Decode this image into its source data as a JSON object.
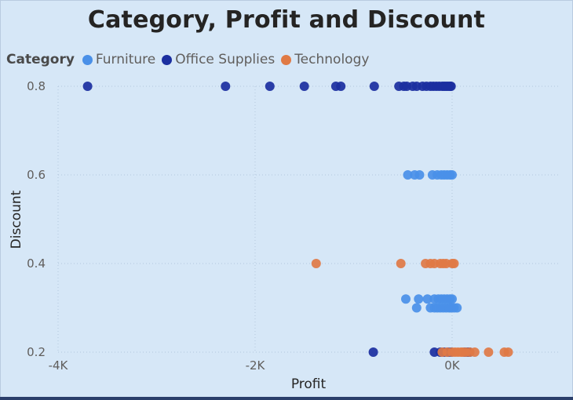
{
  "chart_data": {
    "type": "scatter",
    "title": "Category, Profit and Discount",
    "xlabel": "Profit",
    "ylabel": "Discount",
    "xlim": [
      -4000,
      1100
    ],
    "ylim": [
      0.2,
      0.8
    ],
    "x_ticks": [
      -4000,
      -2000,
      0
    ],
    "x_tick_labels": [
      "-4K",
      "-2K",
      "0K"
    ],
    "y_ticks": [
      0.2,
      0.4,
      0.6,
      0.8
    ],
    "y_tick_labels": [
      "0.2",
      "0.4",
      "0.6",
      "0.8"
    ],
    "grid": true,
    "legend": {
      "title": "Category",
      "placement": "top-left"
    },
    "series": [
      {
        "name": "Furniture",
        "color": "#4a90e8",
        "points": [
          [
            -450,
            0.6
          ],
          [
            -380,
            0.6
          ],
          [
            -330,
            0.6
          ],
          [
            -200,
            0.6
          ],
          [
            -150,
            0.6
          ],
          [
            -110,
            0.6
          ],
          [
            -80,
            0.6
          ],
          [
            -50,
            0.6
          ],
          [
            -20,
            0.6
          ],
          [
            0,
            0.6
          ],
          [
            -470,
            0.32
          ],
          [
            -340,
            0.32
          ],
          [
            -250,
            0.32
          ],
          [
            -180,
            0.32
          ],
          [
            -140,
            0.32
          ],
          [
            -110,
            0.32
          ],
          [
            -80,
            0.32
          ],
          [
            -50,
            0.32
          ],
          [
            -20,
            0.32
          ],
          [
            0,
            0.32
          ],
          [
            -360,
            0.3
          ],
          [
            -220,
            0.3
          ],
          [
            -180,
            0.3
          ],
          [
            -150,
            0.3
          ],
          [
            -120,
            0.3
          ],
          [
            -90,
            0.3
          ],
          [
            -60,
            0.3
          ],
          [
            -30,
            0.3
          ],
          [
            -10,
            0.3
          ],
          [
            20,
            0.3
          ],
          [
            50,
            0.3
          ]
        ]
      },
      {
        "name": "Office Supplies",
        "color": "#1b2fa0",
        "points": [
          [
            -3700,
            0.8
          ],
          [
            -2300,
            0.8
          ],
          [
            -1850,
            0.8
          ],
          [
            -1500,
            0.8
          ],
          [
            -1180,
            0.8
          ],
          [
            -1130,
            0.8
          ],
          [
            -790,
            0.8
          ],
          [
            -540,
            0.8
          ],
          [
            -490,
            0.8
          ],
          [
            -460,
            0.8
          ],
          [
            -400,
            0.8
          ],
          [
            -360,
            0.8
          ],
          [
            -300,
            0.8
          ],
          [
            -260,
            0.8
          ],
          [
            -220,
            0.8
          ],
          [
            -190,
            0.8
          ],
          [
            -160,
            0.8
          ],
          [
            -130,
            0.8
          ],
          [
            -100,
            0.8
          ],
          [
            -80,
            0.8
          ],
          [
            -60,
            0.8
          ],
          [
            -40,
            0.8
          ],
          [
            -20,
            0.8
          ],
          [
            -10,
            0.8
          ],
          [
            -800,
            0.2
          ],
          [
            -180,
            0.2
          ],
          [
            -120,
            0.2
          ],
          [
            -80,
            0.2
          ],
          [
            -40,
            0.2
          ],
          [
            -10,
            0.2
          ],
          [
            130,
            0.2
          ],
          [
            160,
            0.2
          ],
          [
            180,
            0.2
          ]
        ]
      },
      {
        "name": "Technology",
        "color": "#e07a45",
        "points": [
          [
            -1380,
            0.4
          ],
          [
            -520,
            0.4
          ],
          [
            -270,
            0.4
          ],
          [
            -220,
            0.4
          ],
          [
            -180,
            0.4
          ],
          [
            -120,
            0.4
          ],
          [
            -90,
            0.4
          ],
          [
            -60,
            0.4
          ],
          [
            0,
            0.4
          ],
          [
            20,
            0.4
          ],
          [
            -100,
            0.2
          ],
          [
            -50,
            0.2
          ],
          [
            0,
            0.2
          ],
          [
            30,
            0.2
          ],
          [
            60,
            0.2
          ],
          [
            90,
            0.2
          ],
          [
            110,
            0.2
          ],
          [
            140,
            0.2
          ],
          [
            180,
            0.2
          ],
          [
            230,
            0.2
          ],
          [
            370,
            0.2
          ],
          [
            530,
            0.2
          ],
          [
            570,
            0.2
          ]
        ]
      }
    ]
  }
}
